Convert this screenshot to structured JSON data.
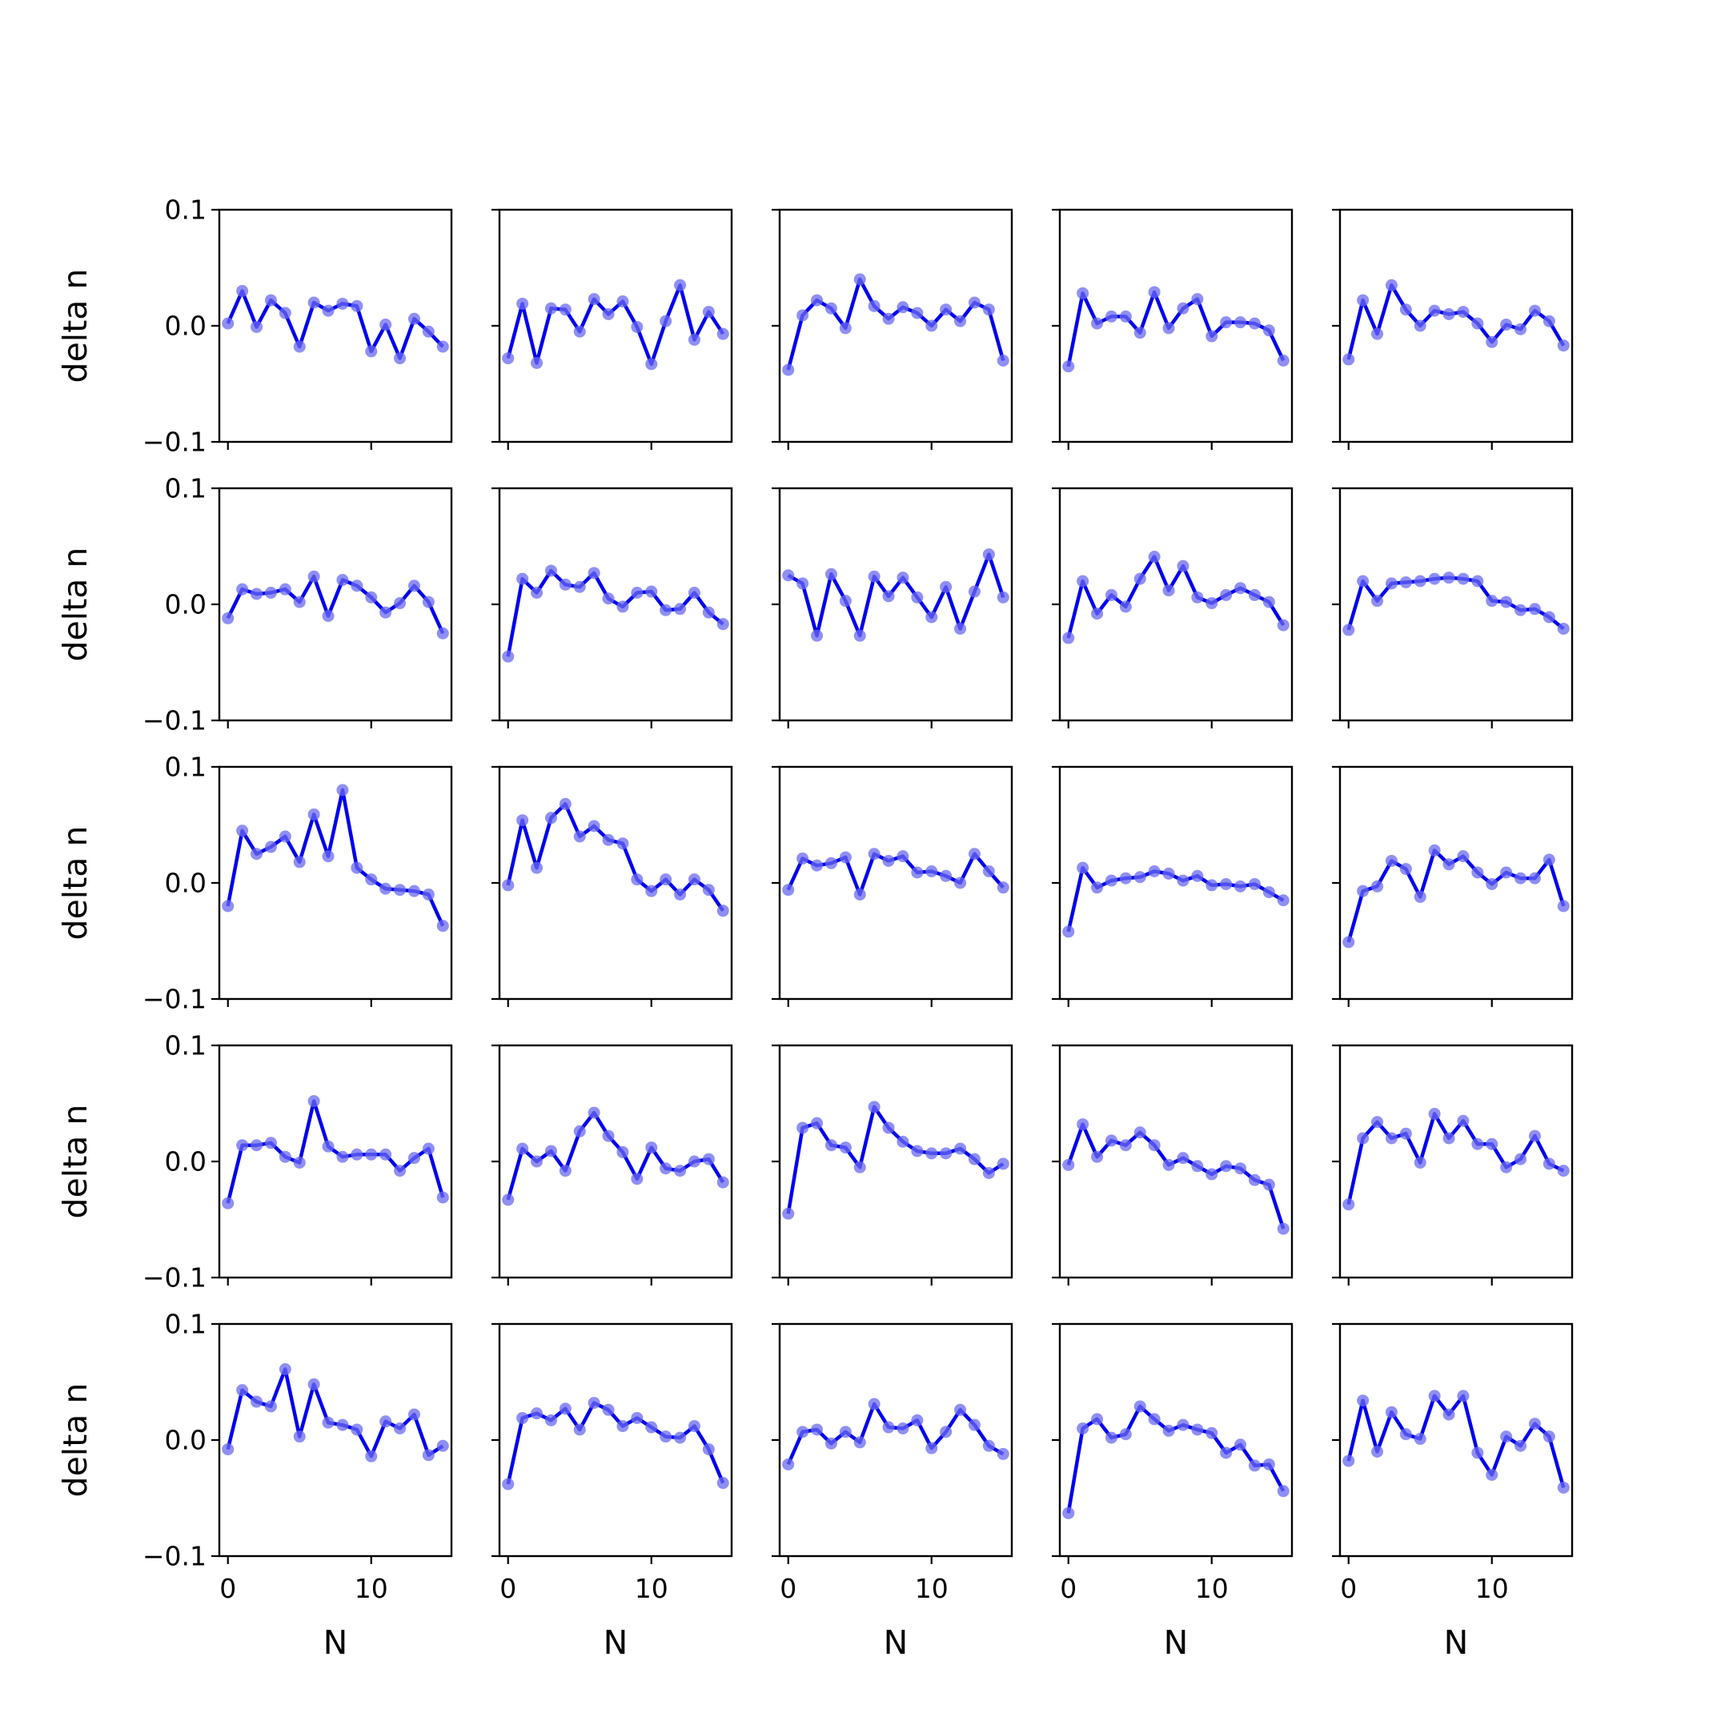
{
  "chart_data": {
    "type": "line",
    "layout": "5x5 grid of subplots",
    "xlabel": "N",
    "ylabel": "delta n",
    "x": [
      0,
      1,
      2,
      3,
      4,
      5,
      6,
      7,
      8,
      9,
      10,
      11,
      12,
      13,
      14,
      15
    ],
    "xticks": [
      0,
      10
    ],
    "xlim": [
      -0.6,
      15.6
    ],
    "ylim": [
      -0.1,
      0.1
    ],
    "yticks": [
      -0.1,
      0.0,
      0.1
    ],
    "ytick_labels": [
      "−0.1",
      "0.0",
      "0.1"
    ],
    "line_color": "#0000ee",
    "marker_color": "#6a6af0",
    "subplots": [
      [
        [
          0.002,
          0.03,
          -0.001,
          0.022,
          0.011,
          -0.018,
          0.02,
          0.013,
          0.019,
          0.017,
          -0.022,
          0.001,
          -0.028,
          0.006,
          -0.005,
          -0.018
        ],
        [
          -0.028,
          0.019,
          -0.032,
          0.015,
          0.014,
          -0.005,
          0.023,
          0.01,
          0.021,
          -0.001,
          -0.033,
          0.004,
          0.035,
          -0.012,
          0.012,
          -0.007
        ],
        [
          -0.038,
          0.009,
          0.022,
          0.015,
          -0.002,
          0.04,
          0.017,
          0.006,
          0.016,
          0.011,
          0.0,
          0.014,
          0.004,
          0.02,
          0.014,
          -0.03
        ],
        [
          -0.035,
          0.028,
          0.002,
          0.008,
          0.008,
          -0.006,
          0.029,
          -0.002,
          0.015,
          0.023,
          -0.009,
          0.003,
          0.003,
          0.002,
          -0.004,
          -0.03
        ],
        [
          -0.029,
          0.022,
          -0.007,
          0.035,
          0.014,
          0.0,
          0.013,
          0.01,
          0.012,
          0.002,
          -0.014,
          0.001,
          -0.003,
          0.013,
          0.004,
          -0.017
        ]
      ],
      [
        [
          -0.012,
          0.013,
          0.009,
          0.01,
          0.013,
          0.002,
          0.024,
          -0.01,
          0.021,
          0.016,
          0.006,
          -0.007,
          0.001,
          0.016,
          0.002,
          -0.025
        ],
        [
          -0.045,
          0.022,
          0.01,
          0.029,
          0.017,
          0.015,
          0.027,
          0.005,
          -0.002,
          0.01,
          0.011,
          -0.005,
          -0.004,
          0.01,
          -0.007,
          -0.017
        ],
        [
          0.025,
          0.018,
          -0.027,
          0.026,
          0.003,
          -0.027,
          0.024,
          0.007,
          0.023,
          0.006,
          -0.011,
          0.015,
          -0.021,
          0.011,
          0.043,
          0.006
        ],
        [
          -0.029,
          0.02,
          -0.008,
          0.008,
          -0.002,
          0.022,
          0.041,
          0.012,
          0.033,
          0.006,
          0.001,
          0.008,
          0.014,
          0.008,
          0.002,
          -0.018
        ],
        [
          -0.022,
          0.02,
          0.003,
          0.018,
          0.019,
          0.02,
          0.022,
          0.023,
          0.022,
          0.02,
          0.003,
          0.002,
          -0.005,
          -0.004,
          -0.011,
          -0.021
        ]
      ],
      [
        [
          -0.02,
          0.045,
          0.025,
          0.031,
          0.04,
          0.018,
          0.059,
          0.023,
          0.08,
          0.013,
          0.003,
          -0.005,
          -0.006,
          -0.007,
          -0.01,
          -0.037
        ],
        [
          -0.002,
          0.054,
          0.013,
          0.056,
          0.068,
          0.04,
          0.049,
          0.037,
          0.034,
          0.003,
          -0.007,
          0.003,
          -0.01,
          0.003,
          -0.006,
          -0.024
        ],
        [
          -0.006,
          0.021,
          0.015,
          0.017,
          0.022,
          -0.01,
          0.025,
          0.019,
          0.023,
          0.009,
          0.01,
          0.006,
          0.0,
          0.025,
          0.01,
          -0.004
        ],
        [
          -0.042,
          0.013,
          -0.004,
          0.002,
          0.004,
          0.005,
          0.01,
          0.008,
          0.002,
          0.006,
          -0.002,
          -0.001,
          -0.003,
          -0.001,
          -0.008,
          -0.015
        ],
        [
          -0.051,
          -0.007,
          -0.003,
          0.019,
          0.012,
          -0.012,
          0.028,
          0.016,
          0.023,
          0.009,
          -0.001,
          0.009,
          0.004,
          0.004,
          0.02,
          -0.02
        ]
      ],
      [
        [
          -0.036,
          0.014,
          0.014,
          0.016,
          0.004,
          -0.001,
          0.052,
          0.013,
          0.004,
          0.006,
          0.006,
          0.006,
          -0.008,
          0.003,
          0.011,
          -0.031
        ],
        [
          -0.033,
          0.011,
          0.0,
          0.009,
          -0.008,
          0.026,
          0.042,
          0.022,
          0.008,
          -0.015,
          0.012,
          -0.006,
          -0.008,
          0.0,
          0.002,
          -0.018
        ],
        [
          -0.045,
          0.029,
          0.033,
          0.014,
          0.012,
          -0.005,
          0.047,
          0.029,
          0.017,
          0.009,
          0.007,
          0.007,
          0.011,
          0.002,
          -0.01,
          -0.002
        ],
        [
          -0.003,
          0.032,
          0.004,
          0.018,
          0.014,
          0.025,
          0.014,
          -0.003,
          0.003,
          -0.004,
          -0.011,
          -0.004,
          -0.006,
          -0.016,
          -0.02,
          -0.058
        ],
        [
          -0.037,
          0.02,
          0.034,
          0.02,
          0.024,
          -0.001,
          0.041,
          0.02,
          0.035,
          0.015,
          0.015,
          -0.005,
          0.002,
          0.022,
          -0.002,
          -0.008
        ]
      ],
      [
        [
          -0.008,
          0.043,
          0.033,
          0.029,
          0.061,
          0.003,
          0.048,
          0.015,
          0.013,
          0.009,
          -0.014,
          0.016,
          0.01,
          0.022,
          -0.013,
          -0.005
        ],
        [
          -0.038,
          0.019,
          0.023,
          0.017,
          0.027,
          0.009,
          0.032,
          0.026,
          0.012,
          0.019,
          0.011,
          0.003,
          0.002,
          0.012,
          -0.008,
          -0.037
        ],
        [
          -0.021,
          0.007,
          0.009,
          -0.003,
          0.007,
          -0.002,
          0.031,
          0.011,
          0.01,
          0.017,
          -0.007,
          0.007,
          0.026,
          0.013,
          -0.005,
          -0.012
        ],
        [
          -0.063,
          0.01,
          0.018,
          0.002,
          0.005,
          0.029,
          0.018,
          0.008,
          0.013,
          0.009,
          0.006,
          -0.011,
          -0.004,
          -0.022,
          -0.021,
          -0.044
        ],
        [
          -0.018,
          0.034,
          -0.01,
          0.024,
          0.005,
          0.001,
          0.038,
          0.022,
          0.038,
          -0.011,
          -0.03,
          0.003,
          -0.005,
          0.014,
          0.003,
          -0.041
        ]
      ]
    ]
  }
}
